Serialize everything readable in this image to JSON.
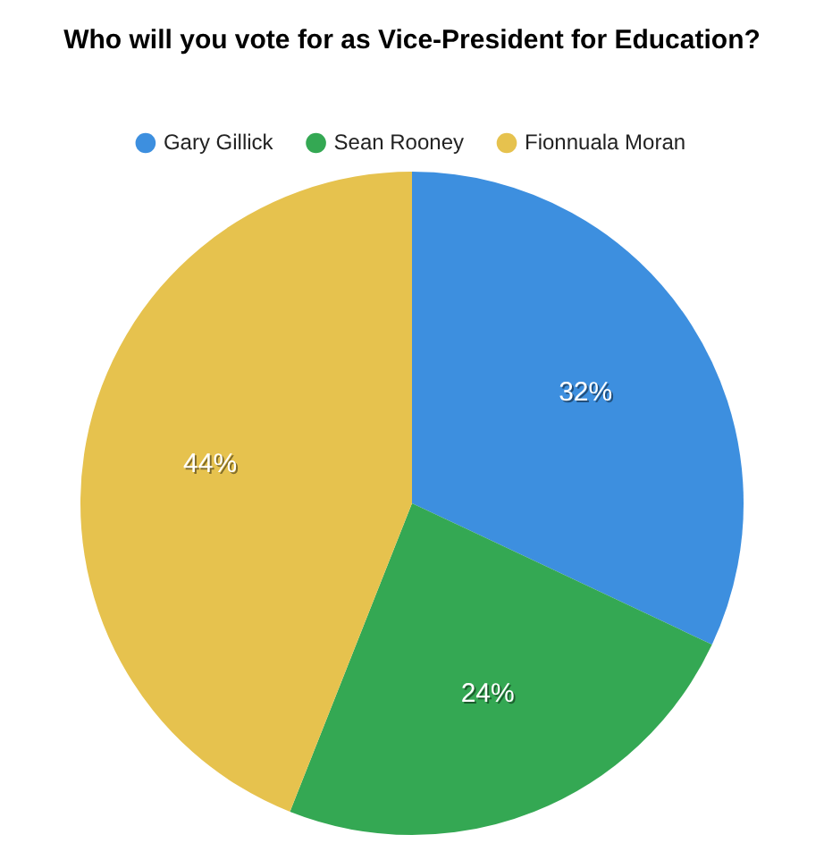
{
  "chart_data": {
    "type": "pie",
    "title": "Who will you vote for as Vice-President for Education?",
    "categories": [
      "Gary Gillick",
      "Sean Rooney",
      "Fionnuala Moran"
    ],
    "values": [
      32,
      24,
      44
    ],
    "colors": [
      "#3d8fdf",
      "#34a853",
      "#e6c24e"
    ],
    "value_labels": [
      "32%",
      "24%",
      "44%"
    ],
    "legend": "top"
  }
}
